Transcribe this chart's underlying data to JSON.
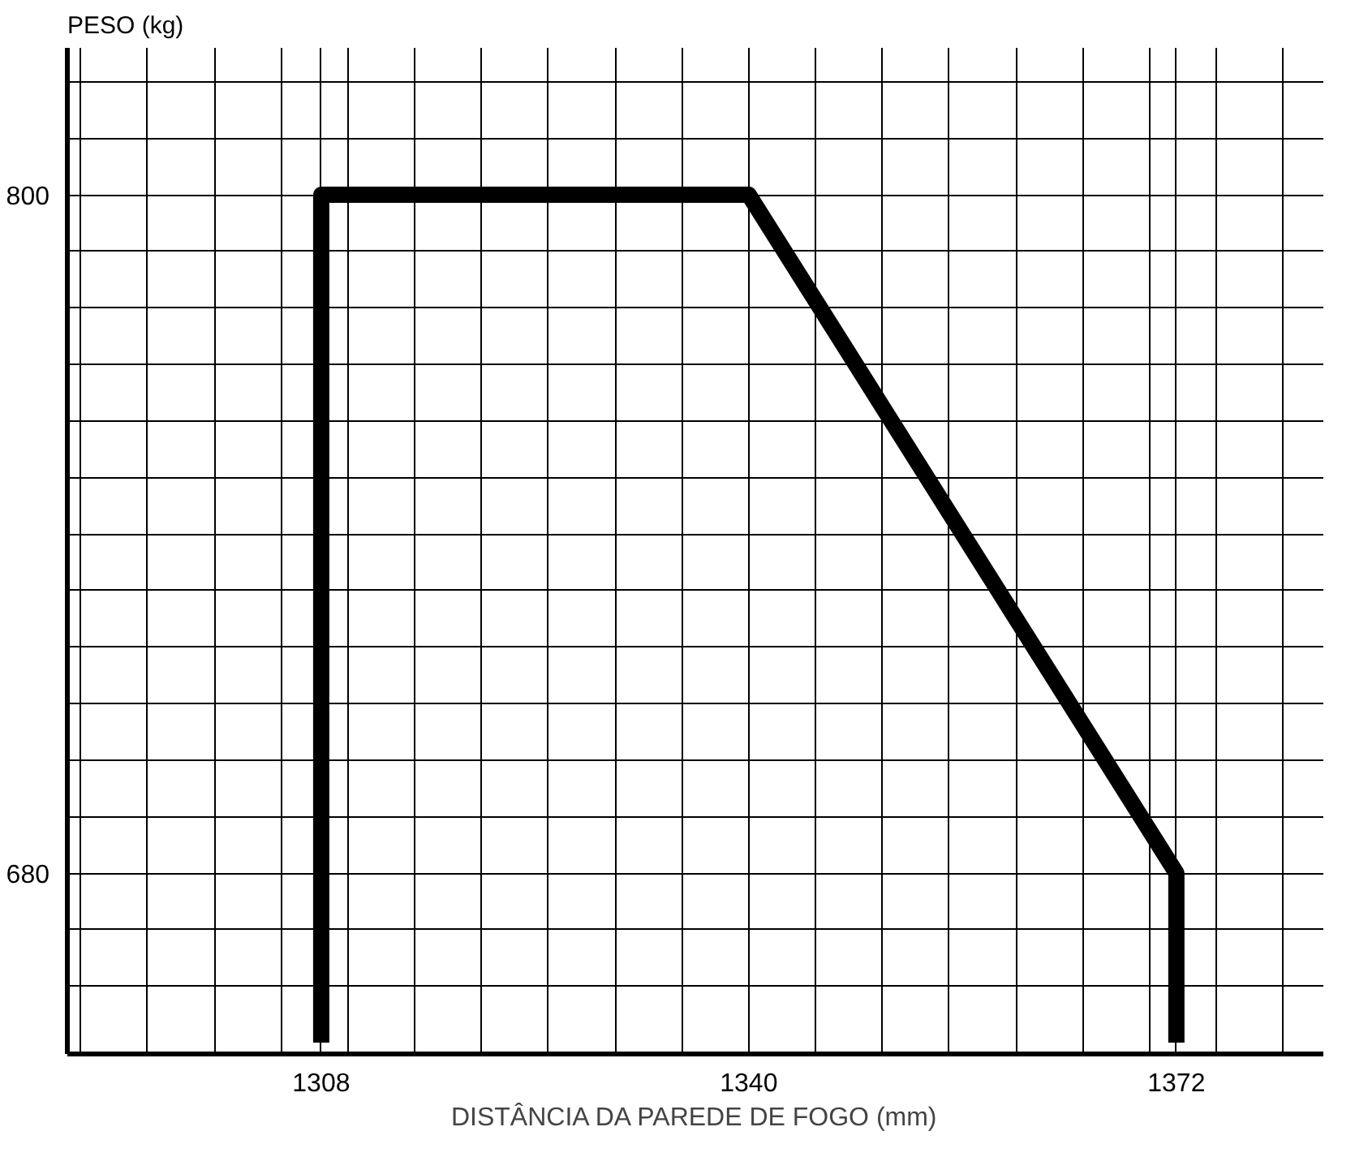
{
  "chart_data": {
    "type": "line",
    "xlabel": "DISTÂNCIA DA PAREDE DE FOGO (mm)",
    "ylabel": "PESO (kg)",
    "x": [
      1308,
      1308,
      1340,
      1372,
      1372
    ],
    "series": [
      {
        "color": "#000000",
        "values": [
          650,
          800,
          800,
          680,
          650
        ]
      }
    ],
    "xlim": [
      1289,
      1383
    ],
    "ylim": [
      648,
      826
    ],
    "xticks": [
      {
        "value": 1290,
        "label": null
      },
      {
        "value": 1295,
        "label": null
      },
      {
        "value": 1300,
        "label": null
      },
      {
        "value": 1305,
        "label": null
      },
      {
        "value": 1308,
        "label": "1308"
      },
      {
        "value": 1310,
        "label": null
      },
      {
        "value": 1315,
        "label": null
      },
      {
        "value": 1320,
        "label": null
      },
      {
        "value": 1325,
        "label": null
      },
      {
        "value": 1330,
        "label": null
      },
      {
        "value": 1335,
        "label": null
      },
      1340,
      {
        "value": 1345,
        "label": null
      },
      {
        "value": 1350,
        "label": null
      },
      {
        "value": 1355,
        "label": null
      },
      {
        "value": 1360,
        "label": null
      },
      {
        "value": 1365,
        "label": null
      },
      {
        "value": 1370,
        "label": null
      },
      {
        "value": 1372,
        "label": "1372"
      },
      {
        "value": 1375,
        "label": null
      },
      {
        "value": 1380,
        "label": null
      }
    ],
    "yticks": [
      {
        "value": 660,
        "label": null
      },
      {
        "value": 670,
        "label": null
      },
      680,
      {
        "value": 690,
        "label": null
      },
      {
        "value": 700,
        "label": null
      },
      {
        "value": 710,
        "label": null
      },
      {
        "value": 720,
        "label": null
      },
      {
        "value": 730,
        "label": null
      },
      {
        "value": 740,
        "label": null
      },
      {
        "value": 750,
        "label": null
      },
      {
        "value": 760,
        "label": null
      },
      {
        "value": 770,
        "label": null
      },
      {
        "value": 780,
        "label": null
      },
      {
        "value": 790,
        "label": null
      },
      800,
      {
        "value": 810,
        "label": null
      },
      {
        "value": 820,
        "label": null
      }
    ],
    "grid": true,
    "marker": "none",
    "line_style": "solid"
  }
}
